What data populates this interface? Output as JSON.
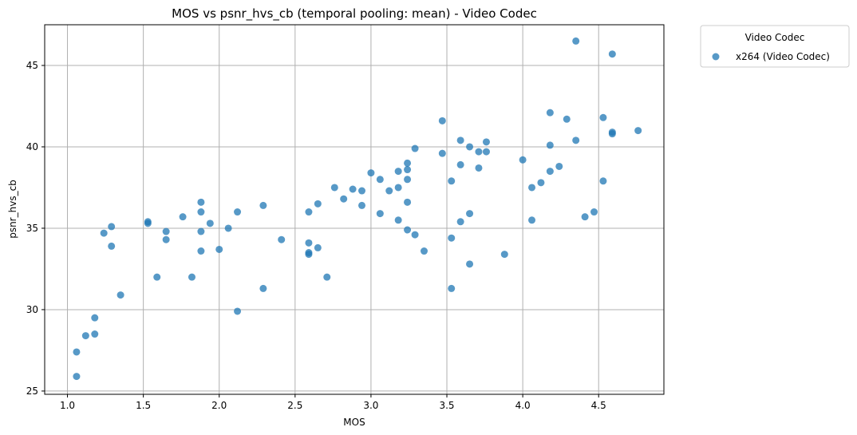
{
  "chart_data": {
    "type": "scatter",
    "title": "MOS vs psnr_hvs_cb (temporal pooling: mean) - Video Codec",
    "xlabel": "MOS",
    "ylabel": "psnr_hvs_cb",
    "xlim": [
      0.85,
      4.93
    ],
    "ylim": [
      24.8,
      47.5
    ],
    "xticks": [
      1.0,
      1.5,
      2.0,
      2.5,
      3.0,
      3.5,
      4.0,
      4.5
    ],
    "xtick_labels": [
      "1.0",
      "1.5",
      "2.0",
      "2.5",
      "3.0",
      "3.5",
      "4.0",
      "4.5"
    ],
    "yticks": [
      25,
      30,
      35,
      40,
      45
    ],
    "ytick_labels": [
      "25",
      "30",
      "35",
      "40",
      "45"
    ],
    "grid": true,
    "legend": {
      "title": "Video Codec",
      "placement": "outside-top-right"
    },
    "series": [
      {
        "name": "x264 (Video Codec)",
        "color": "#1f77b4",
        "points": [
          [
            1.06,
            27.4
          ],
          [
            1.06,
            25.9
          ],
          [
            1.12,
            28.4
          ],
          [
            1.18,
            29.5
          ],
          [
            1.18,
            28.5
          ],
          [
            1.24,
            34.7
          ],
          [
            1.29,
            35.1
          ],
          [
            1.29,
            33.9
          ],
          [
            1.35,
            30.9
          ],
          [
            1.53,
            35.4
          ],
          [
            1.53,
            35.3
          ],
          [
            1.59,
            32.0
          ],
          [
            1.65,
            34.8
          ],
          [
            1.65,
            34.3
          ],
          [
            1.76,
            35.7
          ],
          [
            1.82,
            32.0
          ],
          [
            1.88,
            36.6
          ],
          [
            1.88,
            36.0
          ],
          [
            1.88,
            34.8
          ],
          [
            1.88,
            33.6
          ],
          [
            1.94,
            35.3
          ],
          [
            2.0,
            33.7
          ],
          [
            2.06,
            35.0
          ],
          [
            2.12,
            36.0
          ],
          [
            2.12,
            29.9
          ],
          [
            2.29,
            36.4
          ],
          [
            2.29,
            31.3
          ],
          [
            2.41,
            34.3
          ],
          [
            2.59,
            36.0
          ],
          [
            2.59,
            34.1
          ],
          [
            2.59,
            33.5
          ],
          [
            2.59,
            33.4
          ],
          [
            2.65,
            36.5
          ],
          [
            2.65,
            33.8
          ],
          [
            2.71,
            32.0
          ],
          [
            2.76,
            37.5
          ],
          [
            2.82,
            36.8
          ],
          [
            2.88,
            37.4
          ],
          [
            2.94,
            37.3
          ],
          [
            2.94,
            36.4
          ],
          [
            3.0,
            38.4
          ],
          [
            3.06,
            38.0
          ],
          [
            3.06,
            35.9
          ],
          [
            3.12,
            37.3
          ],
          [
            3.18,
            38.5
          ],
          [
            3.18,
            37.5
          ],
          [
            3.18,
            35.5
          ],
          [
            3.24,
            39.0
          ],
          [
            3.24,
            38.6
          ],
          [
            3.24,
            38.0
          ],
          [
            3.24,
            36.6
          ],
          [
            3.24,
            34.9
          ],
          [
            3.29,
            39.9
          ],
          [
            3.29,
            34.6
          ],
          [
            3.35,
            33.6
          ],
          [
            3.47,
            41.6
          ],
          [
            3.47,
            39.6
          ],
          [
            3.53,
            37.9
          ],
          [
            3.53,
            34.4
          ],
          [
            3.53,
            31.3
          ],
          [
            3.59,
            40.4
          ],
          [
            3.59,
            38.9
          ],
          [
            3.59,
            35.4
          ],
          [
            3.65,
            40.0
          ],
          [
            3.65,
            35.9
          ],
          [
            3.65,
            32.8
          ],
          [
            3.71,
            39.7
          ],
          [
            3.71,
            38.7
          ],
          [
            3.76,
            40.3
          ],
          [
            3.76,
            39.7
          ],
          [
            3.88,
            33.4
          ],
          [
            4.0,
            39.2
          ],
          [
            4.06,
            37.5
          ],
          [
            4.06,
            35.5
          ],
          [
            4.12,
            37.8
          ],
          [
            4.18,
            42.1
          ],
          [
            4.18,
            40.1
          ],
          [
            4.18,
            38.5
          ],
          [
            4.24,
            38.8
          ],
          [
            4.29,
            41.7
          ],
          [
            4.35,
            46.5
          ],
          [
            4.35,
            40.4
          ],
          [
            4.41,
            35.7
          ],
          [
            4.47,
            36.0
          ],
          [
            4.53,
            41.8
          ],
          [
            4.53,
            37.9
          ],
          [
            4.59,
            45.7
          ],
          [
            4.59,
            40.9
          ],
          [
            4.59,
            40.8
          ],
          [
            4.76,
            41.0
          ]
        ]
      }
    ]
  }
}
